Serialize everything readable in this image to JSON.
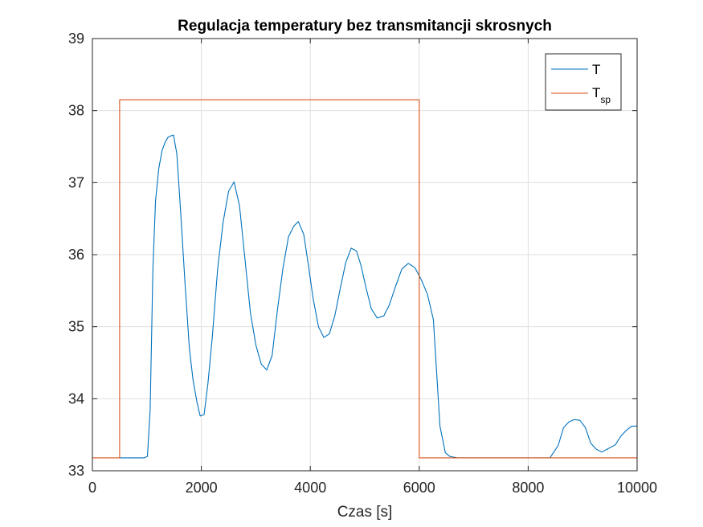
{
  "chart_data": {
    "type": "line",
    "title": "Regulacja temperatury bez transmitancji skrosnych",
    "xlabel": "Czas [s]",
    "ylabel": "",
    "xlim": [
      0,
      10000
    ],
    "ylim": [
      33,
      39
    ],
    "xticks": [
      "0",
      "2000",
      "4000",
      "6000",
      "8000",
      "10000"
    ],
    "yticks": [
      "33",
      "34",
      "35",
      "36",
      "37",
      "38",
      "39"
    ],
    "grid": true,
    "legend_position": "top-right",
    "series": [
      {
        "name": "T",
        "color": "#0072BD",
        "x": [
          500,
          950,
          1010,
          1060,
          1110,
          1160,
          1220,
          1280,
          1340,
          1390,
          1440,
          1490,
          1550,
          1620,
          1700,
          1780,
          1850,
          1920,
          1980,
          2050,
          2120,
          2200,
          2300,
          2400,
          2500,
          2600,
          2700,
          2800,
          2900,
          3000,
          3100,
          3200,
          3300,
          3400,
          3500,
          3600,
          3700,
          3780,
          3880,
          3960,
          4050,
          4150,
          4250,
          4350,
          4450,
          4550,
          4650,
          4750,
          4850,
          4930,
          5020,
          5120,
          5230,
          5350,
          5450,
          5560,
          5680,
          5800,
          5920,
          6040,
          6150,
          6260,
          6380,
          6480,
          6560,
          6630,
          6700,
          6900,
          7100,
          7300,
          8000,
          8400,
          8550,
          8650,
          8750,
          8850,
          8950,
          9050,
          9150,
          9250,
          9350,
          9450,
          9600,
          9700,
          9800,
          9900,
          10000
        ],
        "y": [
          33.18,
          33.18,
          33.2,
          33.85,
          35.8,
          36.75,
          37.2,
          37.45,
          37.57,
          37.63,
          37.65,
          37.66,
          37.4,
          36.6,
          35.6,
          34.7,
          34.25,
          33.95,
          33.76,
          33.78,
          34.2,
          34.85,
          35.8,
          36.45,
          36.88,
          37.01,
          36.68,
          35.95,
          35.2,
          34.75,
          34.48,
          34.4,
          34.6,
          35.25,
          35.82,
          36.25,
          36.4,
          36.46,
          36.28,
          35.88,
          35.4,
          35.0,
          34.85,
          34.9,
          35.15,
          35.53,
          35.89,
          36.09,
          36.05,
          35.85,
          35.55,
          35.25,
          35.12,
          35.15,
          35.3,
          35.55,
          35.8,
          35.88,
          35.82,
          35.65,
          35.45,
          35.1,
          33.62,
          33.25,
          33.2,
          33.19,
          33.18,
          33.18,
          33.18,
          33.18,
          33.18,
          33.18,
          33.35,
          33.6,
          33.68,
          33.71,
          33.7,
          33.6,
          33.38,
          33.3,
          33.26,
          33.3,
          33.36,
          33.48,
          33.56,
          33.62,
          33.62
        ]
      },
      {
        "name": "sp",
        "color": "#D95319",
        "x": [
          0,
          500,
          500,
          6000,
          6000,
          10000
        ],
        "y": [
          33.18,
          33.18,
          38.15,
          38.15,
          33.18,
          33.18
        ]
      }
    ],
    "legend": [
      {
        "main": "T",
        "sub": ""
      },
      {
        "main": "T",
        "sub": "sp"
      }
    ]
  }
}
